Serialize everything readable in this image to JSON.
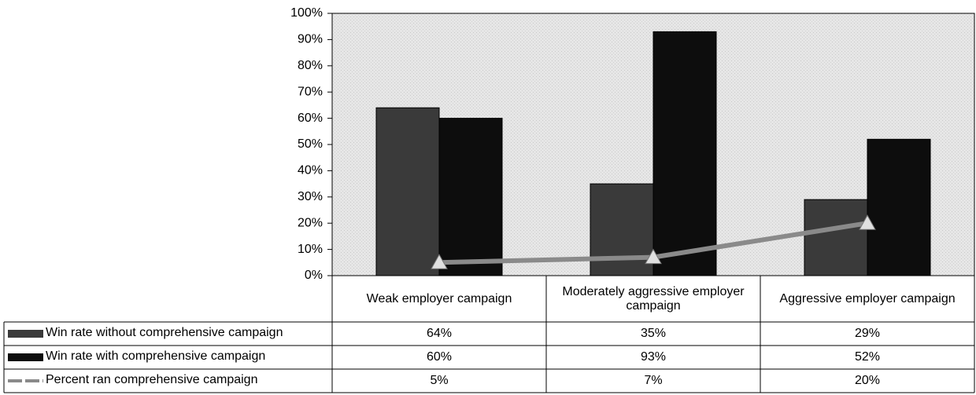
{
  "chart_data": {
    "type": "bar",
    "categories": [
      "Weak employer campaign",
      "Moderately aggressive employer campaign",
      "Aggressive employer campaign"
    ],
    "series": [
      {
        "name": "Win rate without comprehensive campaign",
        "type": "bar",
        "color": "#3a3a3a",
        "values": [
          64,
          35,
          29
        ],
        "value_labels": [
          "64%",
          "35%",
          "29%"
        ]
      },
      {
        "name": "Win rate with comprehensive campaign",
        "type": "bar",
        "color": "#0d0d0d",
        "values": [
          60,
          93,
          52
        ],
        "value_labels": [
          "60%",
          "93%",
          "52%"
        ]
      },
      {
        "name": "Percent ran comprehensive campaign",
        "type": "line",
        "color": "#8a8a8a",
        "marker_color": "#e0e0e0",
        "values": [
          5,
          7,
          20
        ],
        "value_labels": [
          "5%",
          "7%",
          "20%"
        ]
      }
    ],
    "ylim": [
      0,
      100
    ],
    "yticks": [
      {
        "value": 0,
        "label": "0%"
      },
      {
        "value": 10,
        "label": "10%"
      },
      {
        "value": 20,
        "label": "20%"
      },
      {
        "value": 30,
        "label": "30%"
      },
      {
        "value": 40,
        "label": "40%"
      },
      {
        "value": 50,
        "label": "50%"
      },
      {
        "value": 60,
        "label": "60%"
      },
      {
        "value": 70,
        "label": "70%"
      },
      {
        "value": 80,
        "label": "80%"
      },
      {
        "value": 90,
        "label": "90%"
      },
      {
        "value": 100,
        "label": "100%"
      }
    ],
    "grid": false,
    "legend": "table"
  }
}
